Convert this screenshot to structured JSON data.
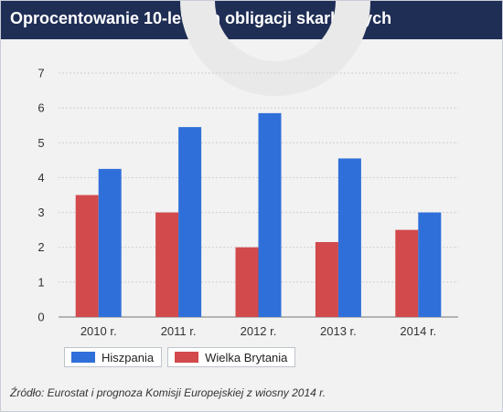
{
  "title": "Oprocentowanie 10-letnich obligacji skarbowych",
  "source": "Źródło: Eurostat i prognoza Komisji Europejskiej z wiosny 2014 r.",
  "colors": {
    "header_bg": "#1f2e55",
    "hiszpania": "#2f6fda",
    "wielka_brytania": "#d24a4c"
  },
  "chart_data": {
    "type": "bar",
    "categories": [
      "2010 r.",
      "2011 r.",
      "2012 r.",
      "2013 r.",
      "2014 r."
    ],
    "series": [
      {
        "name": "Wielka Brytania",
        "values": [
          3.5,
          3.0,
          2.0,
          2.15,
          2.5
        ],
        "color": "#d24a4c"
      },
      {
        "name": "Hiszpania",
        "values": [
          4.25,
          5.45,
          5.85,
          4.55,
          3.0
        ],
        "color": "#2f6fda"
      }
    ],
    "ylim": [
      0,
      7
    ],
    "yticks": [
      "0",
      "1",
      "2",
      "3",
      "4",
      "5",
      "6",
      "7"
    ],
    "grid": true,
    "legend": [
      {
        "label": "Hiszpania",
        "color": "#2f6fda"
      },
      {
        "label": "Wielka Brytania",
        "color": "#d24a4c"
      }
    ],
    "legend_position": "bottom-left"
  }
}
